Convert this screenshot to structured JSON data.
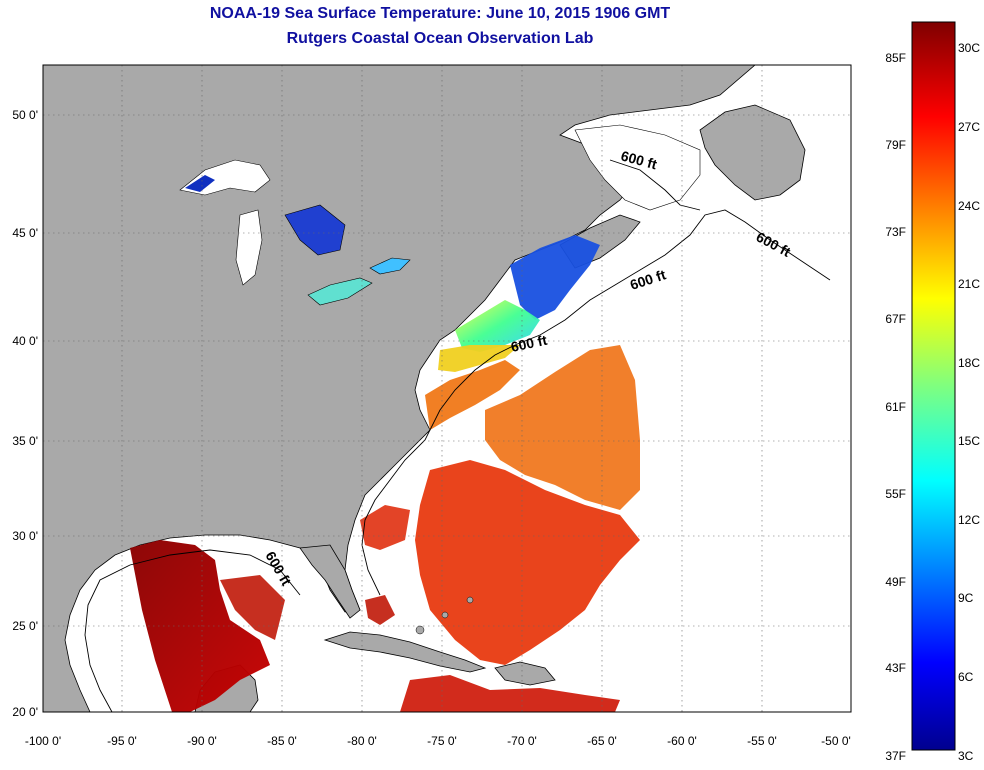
{
  "title": "NOAA-19 Sea Surface Temperature:  June 10, 2015 1906 GMT",
  "subtitle": "Rutgers Coastal Ocean Observation Lab",
  "map": {
    "lon_ticks": [
      "-100 0'",
      "-95 0'",
      "-90 0'",
      "-85 0'",
      "-80 0'",
      "-75 0'",
      "-70 0'",
      "-65 0'",
      "-60 0'",
      "-55 0'",
      "-50 0'"
    ],
    "lat_ticks": [
      "50 0'",
      "45 0'",
      "40 0'",
      "35 0'",
      "30 0'",
      "25 0'",
      "20 0'"
    ],
    "contour_labels": [
      "600 ft",
      "600 ft",
      "600 ft",
      "600 ft",
      "600 ft"
    ],
    "land_color": "#a9a9a9",
    "ocean_nodata_color": "#ffffff",
    "grid": "dotted"
  },
  "colorbar": {
    "f_labels": [
      "85F",
      "79F",
      "73F",
      "67F",
      "61F",
      "55F",
      "49F",
      "43F",
      "37F"
    ],
    "c_labels": [
      "30C",
      "27C",
      "24C",
      "21C",
      "18C",
      "15C",
      "12C",
      "9C",
      "6C",
      "3C"
    ],
    "colormap": "jet"
  }
}
